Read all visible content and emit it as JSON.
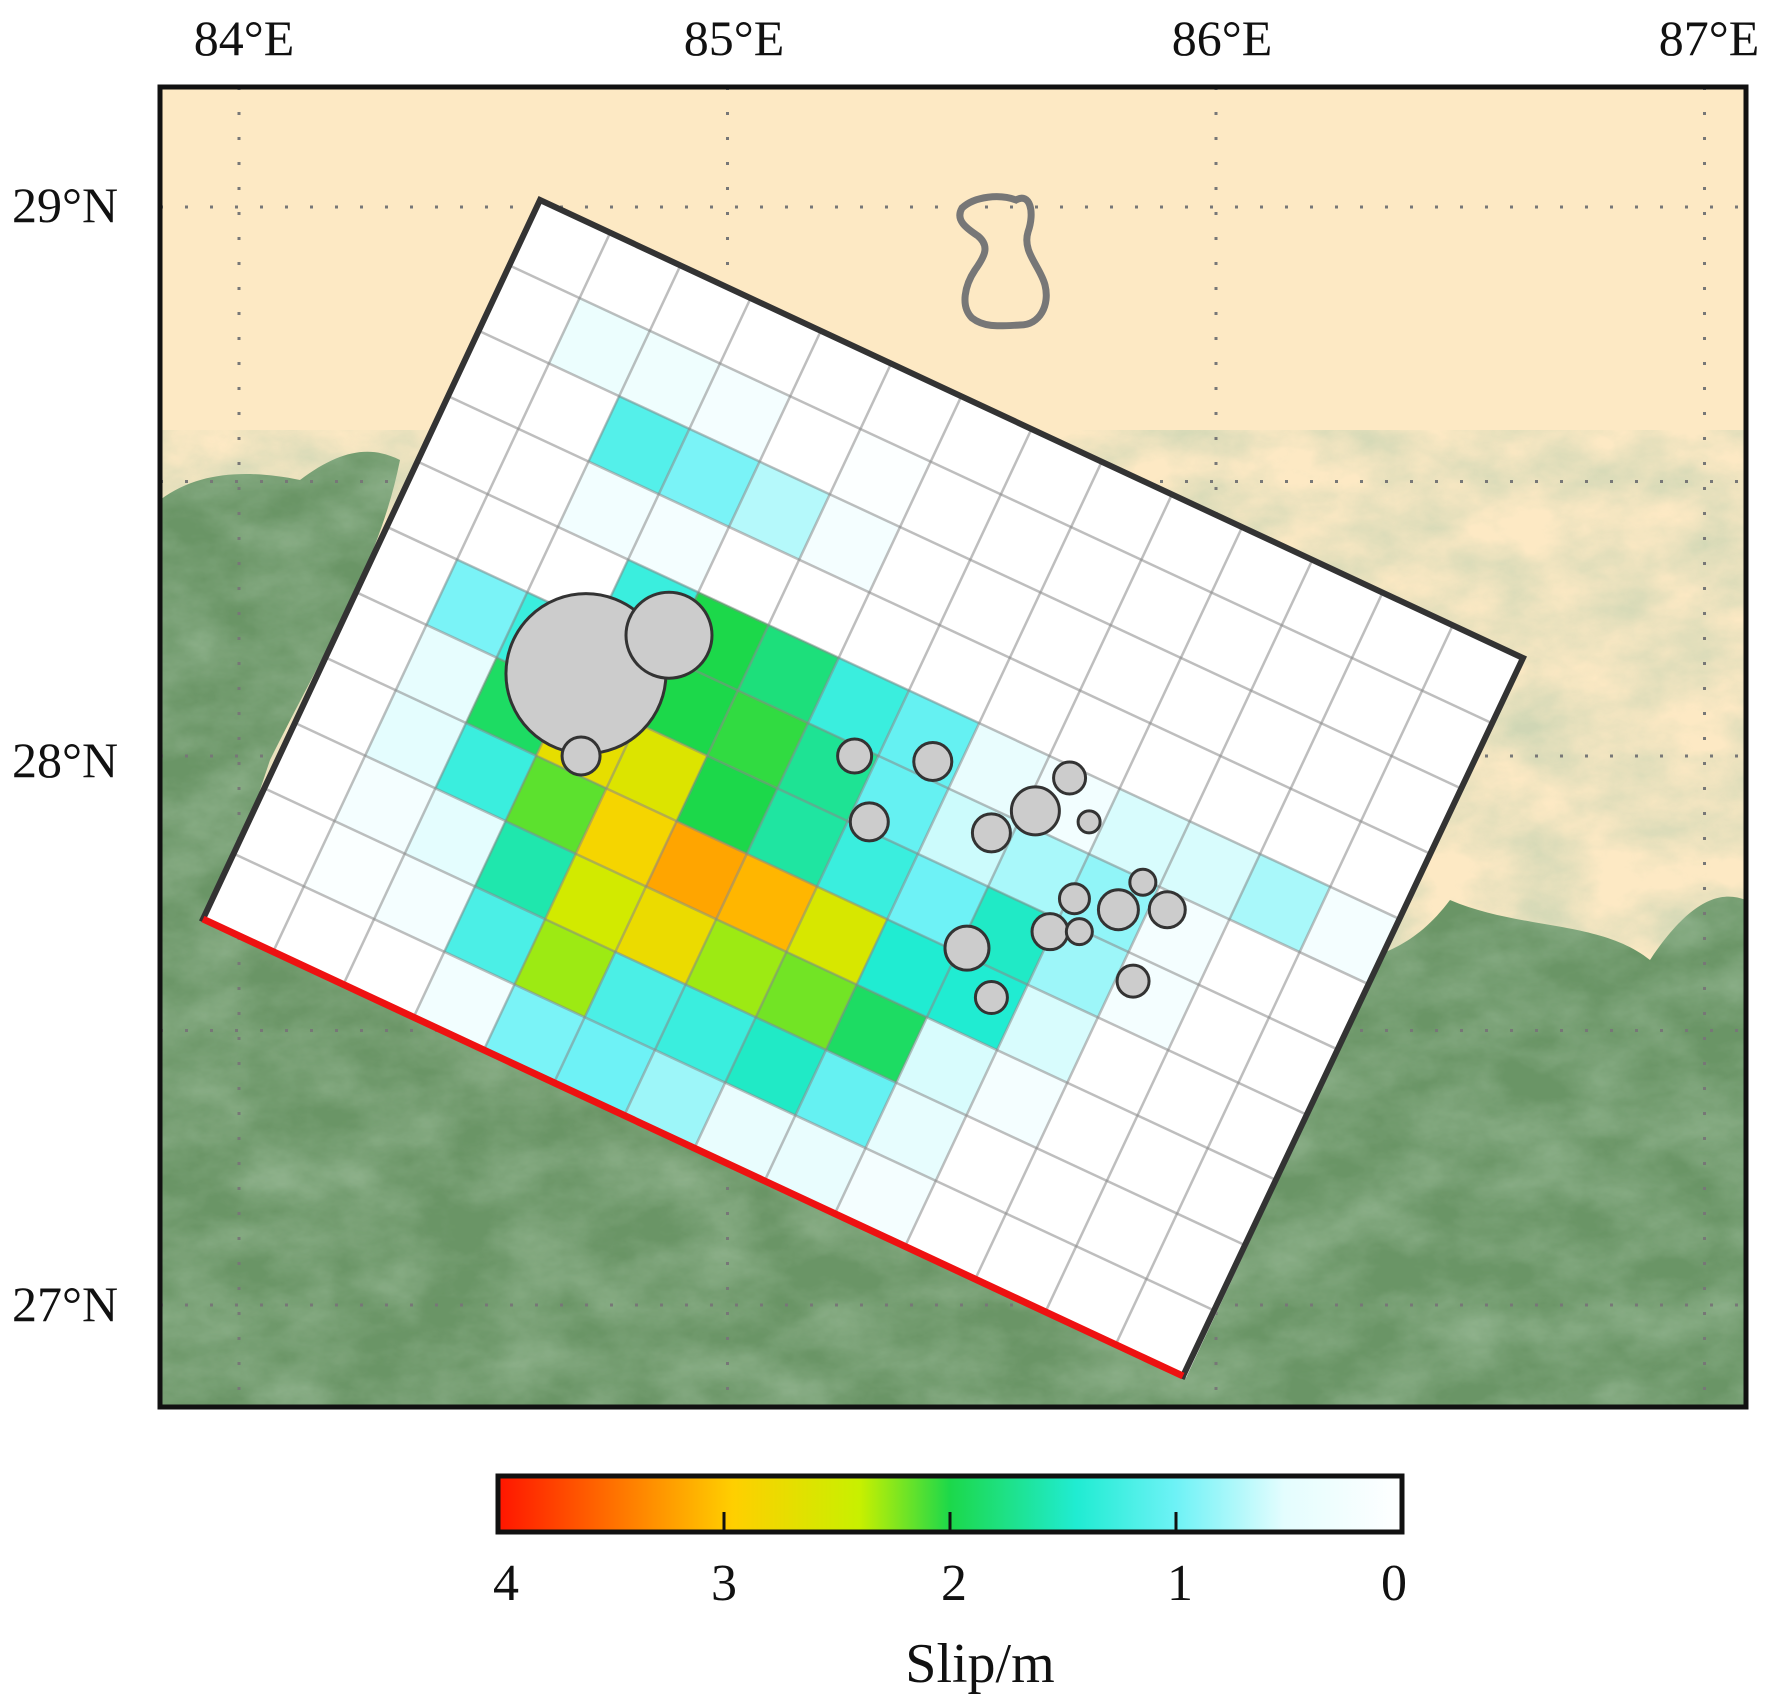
{
  "figure": {
    "lon_ticks": [
      "84°E",
      "85°E",
      "86°E",
      "87°E"
    ],
    "lat_ticks": [
      "29°N",
      "28°N",
      "27°N"
    ],
    "colorbar": {
      "label": "Slip/m",
      "ticks": [
        "4",
        "3",
        "2",
        "1",
        "0"
      ],
      "range_m": [
        0,
        4
      ]
    },
    "colors": {
      "land": "#fde9c4",
      "lowland": "#6a9566",
      "fault_outline": "#333333",
      "trace": "#ee1111",
      "event_fill": "#cccccc",
      "event_stroke": "#333333",
      "grid": "#888888",
      "lake": "#777777"
    },
    "slip_model": {
      "along_strike_cells": 14,
      "down_dip_cells": 11,
      "slip_m_rows": [
        [
          0,
          0,
          0,
          0,
          0,
          0,
          0,
          0,
          0,
          0,
          0,
          0,
          0,
          0
        ],
        [
          0,
          0.35,
          0.3,
          0.2,
          0,
          0.05,
          0,
          0,
          0,
          0,
          0,
          0,
          0,
          0
        ],
        [
          0,
          0,
          1.15,
          0.95,
          0.7,
          0.2,
          0,
          0,
          0,
          0,
          0,
          0,
          0,
          0
        ],
        [
          0,
          0,
          0.25,
          0.2,
          0,
          0,
          0,
          0,
          0,
          0,
          0,
          0,
          0,
          0
        ],
        [
          0,
          0,
          0,
          1.3,
          2.0,
          1.8,
          1.3,
          1.05,
          0.4,
          0.25,
          0.55,
          0.55,
          0.75,
          0.2
        ],
        [
          0,
          0.95,
          1.3,
          1.4,
          2.0,
          2.05,
          1.7,
          1.05,
          0.6,
          0.75,
          0.85,
          0.2,
          0,
          0
        ],
        [
          0,
          0.45,
          1.9,
          2.7,
          2.6,
          2.0,
          1.65,
          1.3,
          1.0,
          1.5,
          0.8,
          0.2,
          0,
          0
        ],
        [
          0,
          0.5,
          1.3,
          2.15,
          2.85,
          3.2,
          3.1,
          2.55,
          1.45,
          1.45,
          0.55,
          0,
          0,
          0
        ],
        [
          0,
          0.2,
          0.5,
          1.6,
          2.5,
          2.75,
          2.3,
          2.2,
          1.9,
          0.55,
          0.2,
          0,
          0,
          0
        ],
        [
          0,
          0.1,
          0.2,
          1.2,
          2.3,
          1.2,
          1.3,
          1.5,
          1.05,
          0.45,
          0,
          0,
          0,
          0
        ],
        [
          0,
          0,
          0,
          0.25,
          0.95,
          1.0,
          0.8,
          0.4,
          0.4,
          0.2,
          0,
          0,
          0,
          0
        ]
      ]
    },
    "events": [
      {
        "lon": 84.7,
        "lat": 28.15,
        "size": 8.0
      },
      {
        "lon": 84.87,
        "lat": 28.22,
        "size": 4.3
      },
      {
        "lon": 84.69,
        "lat": 28.0,
        "size": 1.9
      },
      {
        "lon": 85.25,
        "lat": 28.0,
        "size": 1.7
      },
      {
        "lon": 85.41,
        "lat": 27.99,
        "size": 1.9
      },
      {
        "lon": 85.28,
        "lat": 27.88,
        "size": 1.9
      },
      {
        "lon": 85.53,
        "lat": 27.86,
        "size": 1.9
      },
      {
        "lon": 85.62,
        "lat": 27.9,
        "size": 2.4
      },
      {
        "lon": 85.69,
        "lat": 27.96,
        "size": 1.6
      },
      {
        "lon": 85.73,
        "lat": 27.88,
        "size": 1.1
      },
      {
        "lon": 85.7,
        "lat": 27.74,
        "size": 1.5
      },
      {
        "lon": 85.65,
        "lat": 27.68,
        "size": 1.8
      },
      {
        "lon": 85.71,
        "lat": 27.68,
        "size": 1.3
      },
      {
        "lon": 85.79,
        "lat": 27.72,
        "size": 2.0
      },
      {
        "lon": 85.84,
        "lat": 27.77,
        "size": 1.3
      },
      {
        "lon": 85.89,
        "lat": 27.72,
        "size": 1.8
      },
      {
        "lon": 85.48,
        "lat": 27.65,
        "size": 2.2
      },
      {
        "lon": 85.53,
        "lat": 27.56,
        "size": 1.6
      },
      {
        "lon": 85.82,
        "lat": 27.59,
        "size": 1.6
      }
    ]
  }
}
